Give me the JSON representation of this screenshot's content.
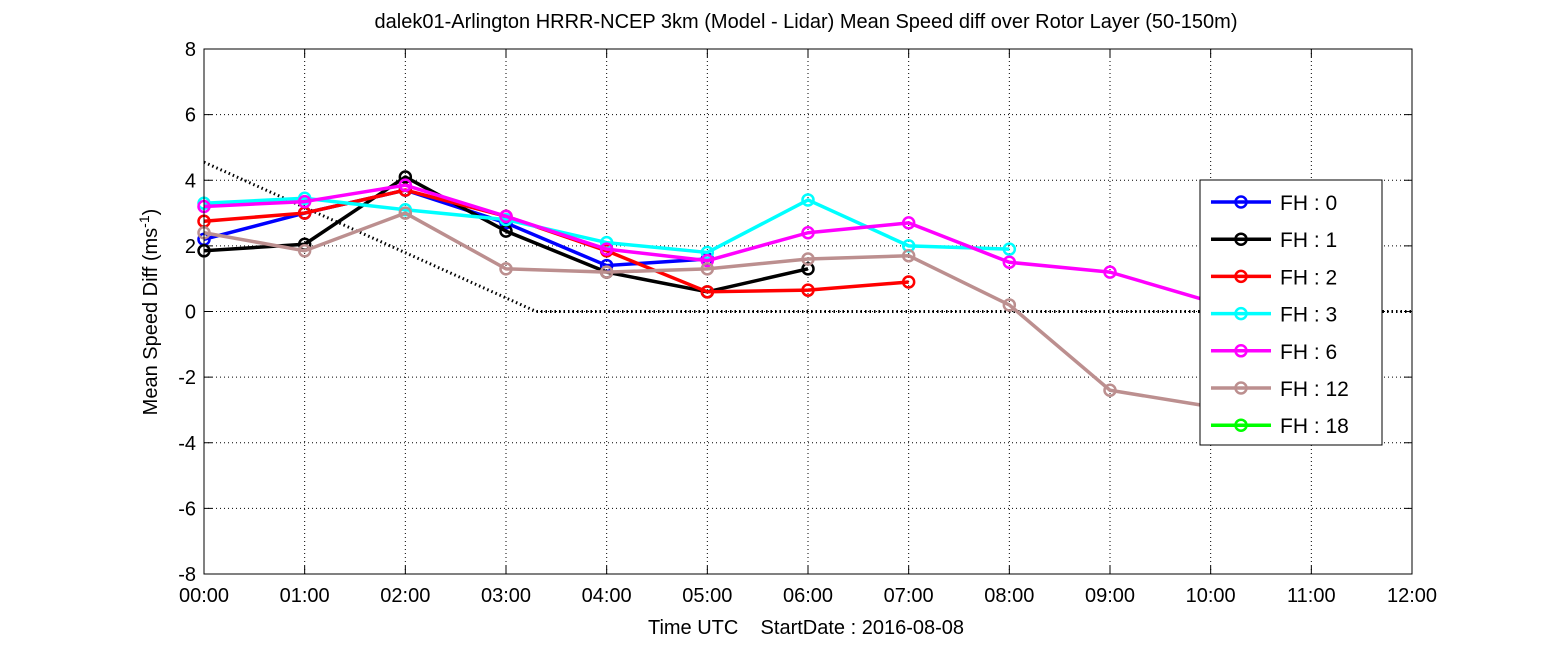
{
  "chart_data": {
    "type": "line",
    "title": "dalek01-Arlington HRRR-NCEP 3km (Model - Lidar) Mean Speed diff over Rotor Layer (50-150m)",
    "xlabel": "Time UTC    StartDate : 2016-08-08",
    "ylabel_main": "Mean Speed Diff (ms",
    "ylabel_sup": "-1",
    "ylabel_close": ")",
    "x_ticks": [
      "00:00",
      "01:00",
      "02:00",
      "03:00",
      "04:00",
      "05:00",
      "06:00",
      "07:00",
      "08:00",
      "09:00",
      "10:00",
      "11:00",
      "12:00"
    ],
    "y_ticks": [
      "-8",
      "-6",
      "-4",
      "-2",
      "0",
      "2",
      "4",
      "6",
      "8"
    ],
    "xlim": [
      0,
      12
    ],
    "ylim": [
      -8,
      8
    ],
    "grid": true,
    "legend_position": "right",
    "series": [
      {
        "name": "FH : 0",
        "color": "#0000ff",
        "x": [
          0,
          1,
          2,
          3,
          4,
          5
        ],
        "y": [
          2.2,
          3.0,
          3.7,
          2.7,
          1.4,
          1.6
        ]
      },
      {
        "name": "FH : 1",
        "color": "#000000",
        "x": [
          0,
          1,
          2,
          3,
          4,
          5,
          6
        ],
        "y": [
          1.85,
          2.05,
          4.1,
          2.45,
          1.2,
          0.6,
          1.3
        ]
      },
      {
        "name": "FH : 2",
        "color": "#ff0000",
        "x": [
          0,
          1,
          2,
          3,
          4,
          5,
          6,
          7
        ],
        "y": [
          2.75,
          3.0,
          3.7,
          2.9,
          1.85,
          0.6,
          0.65,
          0.9
        ]
      },
      {
        "name": "FH : 3",
        "color": "#00ffff",
        "x": [
          0,
          1,
          2,
          3,
          4,
          5,
          6,
          7,
          8
        ],
        "y": [
          3.3,
          3.45,
          3.1,
          2.8,
          2.1,
          1.8,
          3.4,
          2.0,
          1.9
        ]
      },
      {
        "name": "FH : 6",
        "color": "#ff00ff",
        "x": [
          0,
          1,
          2,
          3,
          4,
          5,
          6,
          7,
          8,
          9,
          10
        ],
        "y": [
          3.2,
          3.35,
          3.85,
          2.9,
          1.9,
          1.55,
          2.4,
          2.7,
          1.5,
          1.2,
          0.3
        ]
      },
      {
        "name": "FH : 12",
        "color": "#bc8f8f",
        "x": [
          0,
          1,
          2,
          3,
          4,
          5,
          6,
          7,
          8,
          9,
          10
        ],
        "y": [
          2.4,
          1.85,
          3.0,
          1.3,
          1.2,
          1.3,
          1.6,
          1.7,
          0.2,
          -2.4,
          -2.9
        ]
      },
      {
        "name": "FH : 18",
        "color": "#00ff00",
        "x": [],
        "y": []
      }
    ],
    "reference_line": {
      "color": "#000000",
      "style": "dotted",
      "x": [
        0,
        3.3,
        12
      ],
      "y": [
        4.55,
        0,
        0
      ]
    }
  }
}
